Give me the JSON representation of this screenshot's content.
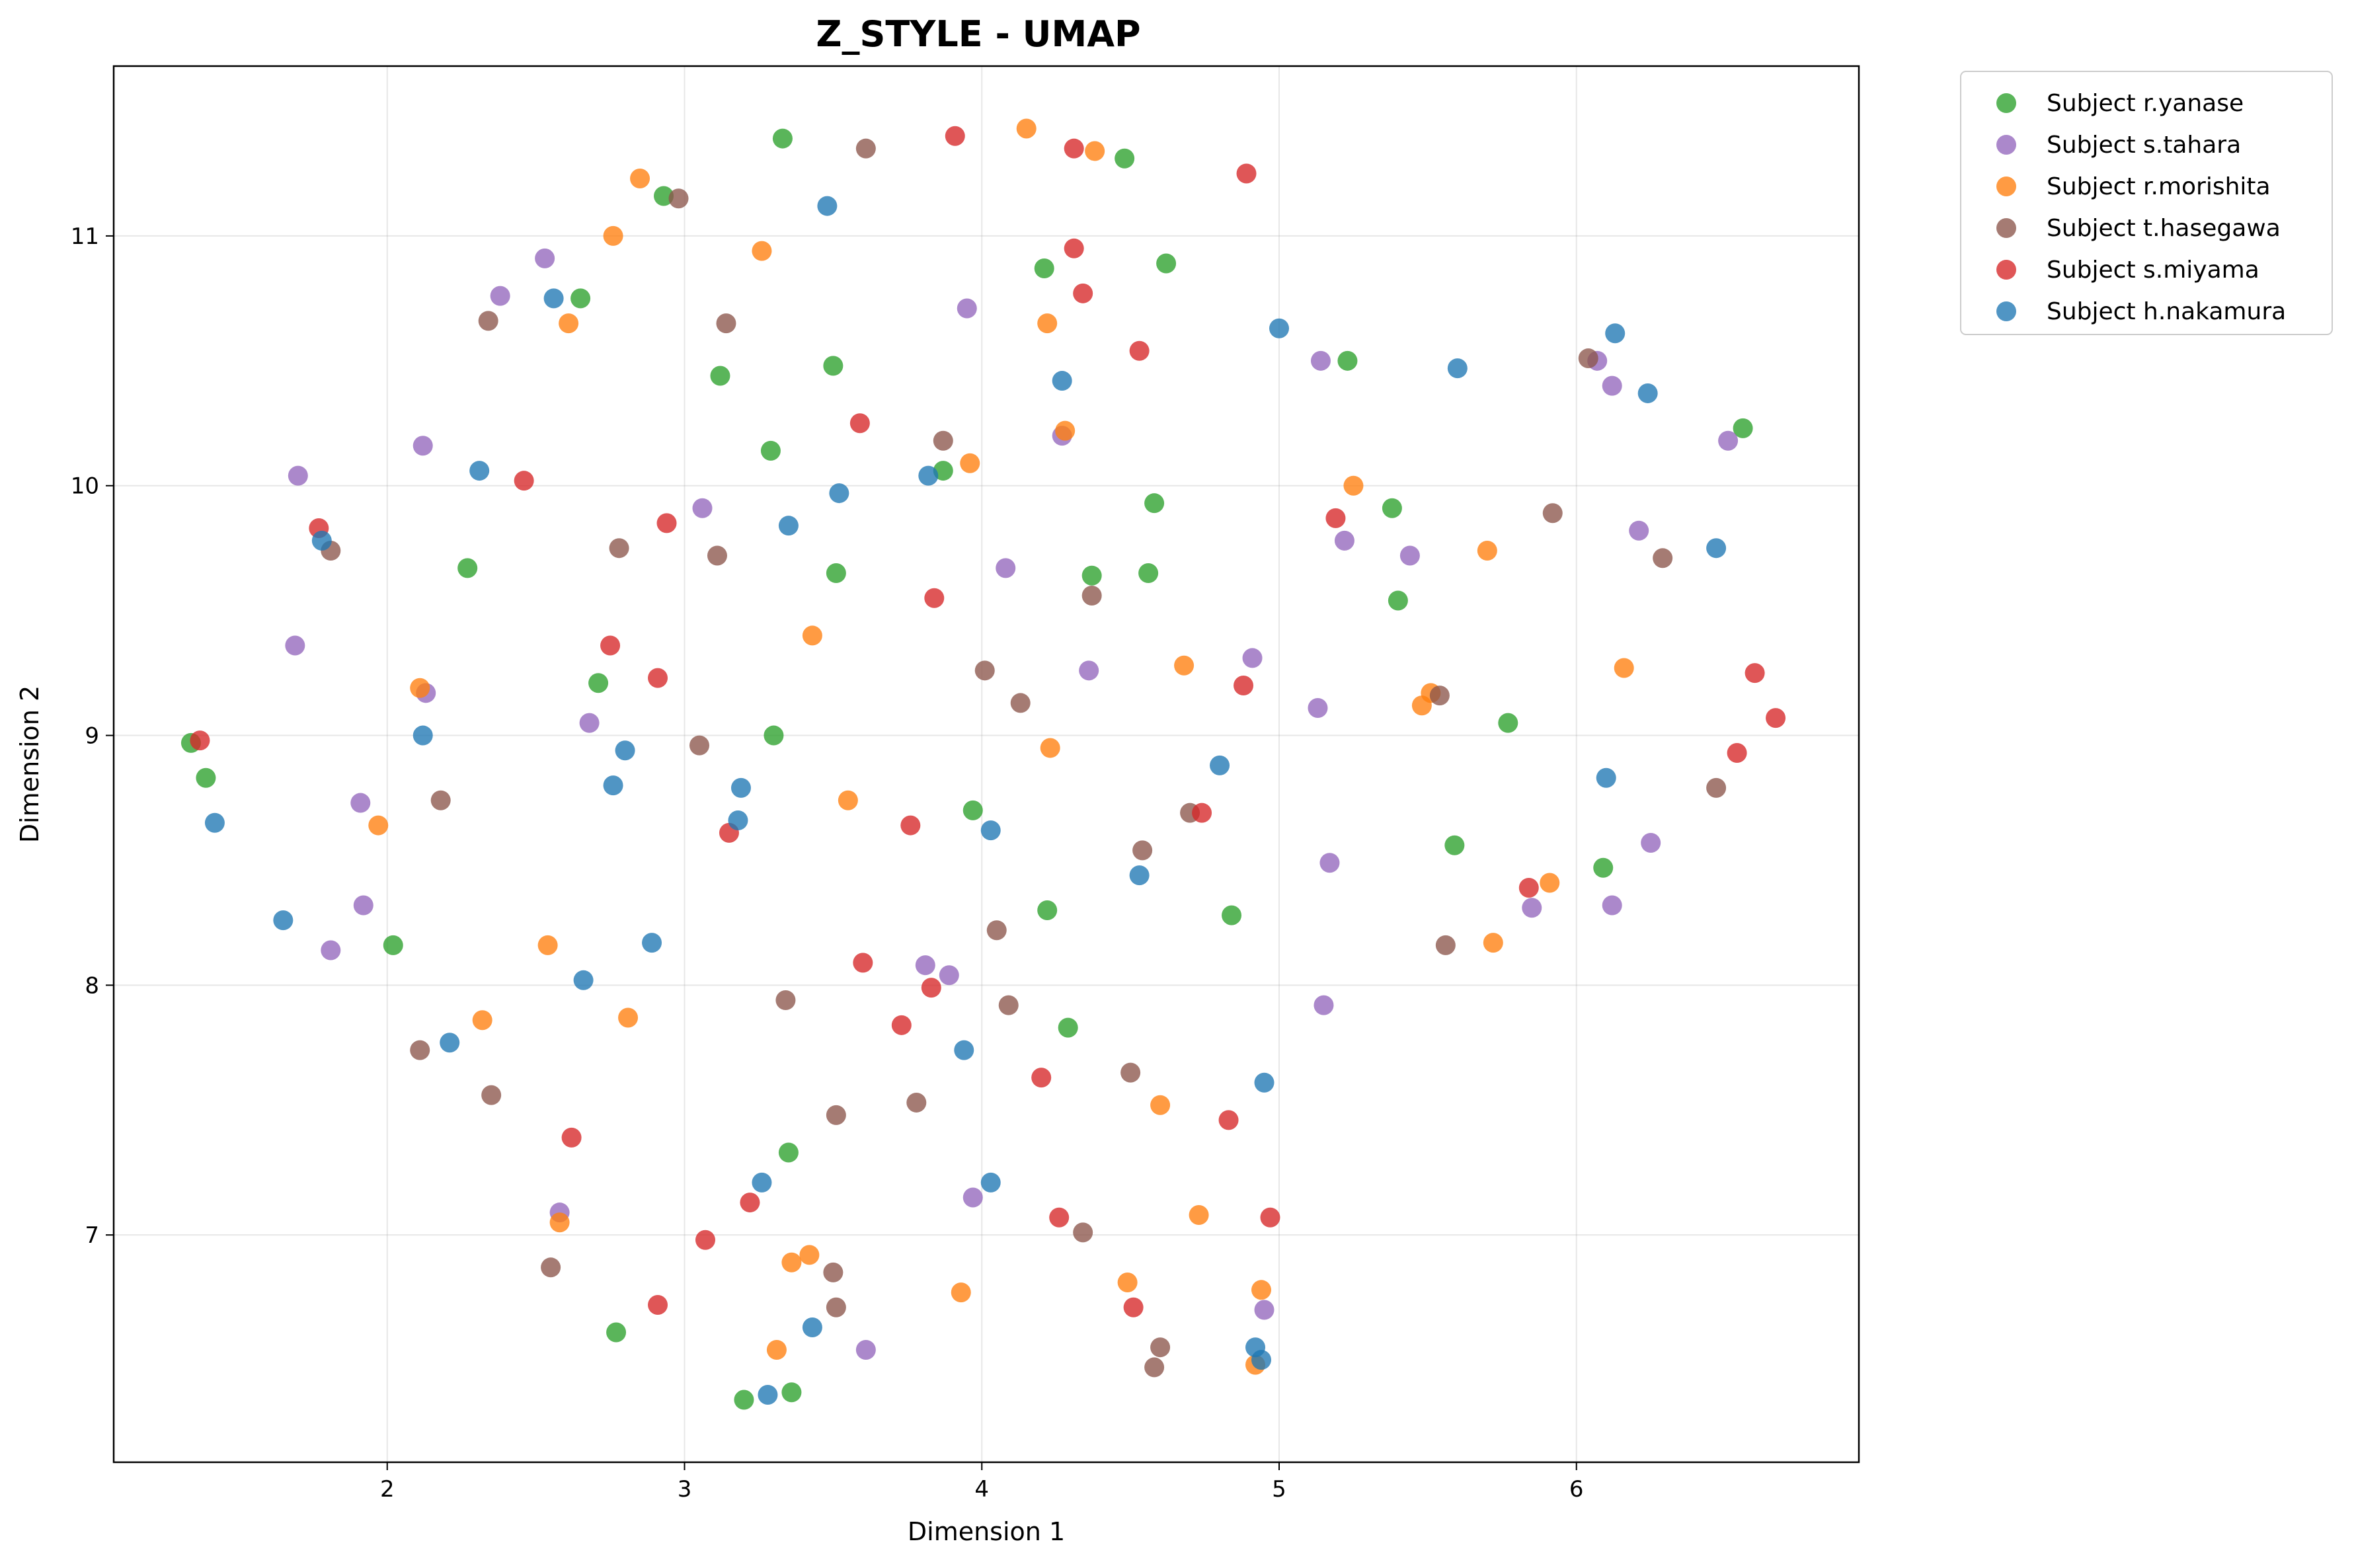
{
  "chart_data": {
    "type": "scatter",
    "title": "Z_STYLE - UMAP",
    "xlabel": "Dimension 1",
    "ylabel": "Dimension 2",
    "xlim": [
      1.08,
      6.95
    ],
    "ylim": [
      6.09,
      11.68
    ],
    "xticks": [
      2,
      3,
      4,
      5,
      6
    ],
    "yticks": [
      7,
      8,
      9,
      10,
      11
    ],
    "grid": true,
    "legend_position": "outside-top-right",
    "series": [
      {
        "name": "Subject r.yanase",
        "color": "#2ca02c",
        "x": [
          3.33,
          4.48,
          2.93,
          4.21,
          4.62,
          2.65,
          3.5,
          5.23,
          3.12,
          6.56,
          3.29,
          3.87,
          4.58,
          5.38,
          2.27,
          3.51,
          4.37,
          4.56,
          5.4,
          2.71,
          5.77,
          1.34,
          3.3,
          1.39,
          3.97,
          5.59,
          6.09,
          4.22,
          4.84,
          2.02,
          4.29,
          3.35,
          2.77,
          3.2,
          3.36
        ],
        "y": [
          11.39,
          11.31,
          11.16,
          10.87,
          10.89,
          10.75,
          10.48,
          10.5,
          10.44,
          10.23,
          10.14,
          10.06,
          9.93,
          9.91,
          9.67,
          9.65,
          9.64,
          9.65,
          9.54,
          9.21,
          9.05,
          8.97,
          9.0,
          8.83,
          8.7,
          8.56,
          8.47,
          8.3,
          8.28,
          8.16,
          7.83,
          7.33,
          6.61,
          6.34,
          6.37
        ]
      },
      {
        "name": "Subject s.tahara",
        "color": "#9467bd",
        "x": [
          2.53,
          2.38,
          3.95,
          5.14,
          6.07,
          6.12,
          6.51,
          2.12,
          4.27,
          1.7,
          3.06,
          5.22,
          6.21,
          4.08,
          5.44,
          1.69,
          4.91,
          4.36,
          2.13,
          5.13,
          2.68,
          1.91,
          6.25,
          5.17,
          6.12,
          1.92,
          5.85,
          1.81,
          3.81,
          3.89,
          5.15,
          2.58,
          3.97,
          4.95,
          3.61
        ],
        "y": [
          10.91,
          10.76,
          10.71,
          10.5,
          10.5,
          10.4,
          10.18,
          10.16,
          10.2,
          10.04,
          9.91,
          9.78,
          9.82,
          9.67,
          9.72,
          9.36,
          9.31,
          9.26,
          9.17,
          9.11,
          9.05,
          8.73,
          8.57,
          8.49,
          8.32,
          8.32,
          8.31,
          8.14,
          8.08,
          8.04,
          7.92,
          7.09,
          7.15,
          6.7,
          6.54
        ]
      },
      {
        "name": "Subject r.morishita",
        "color": "#ff7f0e",
        "x": [
          4.15,
          4.38,
          2.85,
          2.76,
          3.26,
          2.61,
          4.22,
          4.28,
          3.96,
          5.25,
          5.7,
          3.43,
          4.68,
          6.16,
          2.11,
          5.51,
          5.48,
          4.23,
          3.55,
          1.97,
          5.91,
          2.54,
          5.72,
          2.32,
          2.81,
          4.6,
          4.73,
          2.58,
          3.42,
          3.36,
          3.93,
          4.49,
          4.94,
          3.31,
          4.92
        ],
        "y": [
          11.43,
          11.34,
          11.23,
          11.0,
          10.94,
          10.65,
          10.65,
          10.22,
          10.09,
          10.0,
          9.74,
          9.4,
          9.28,
          9.27,
          9.19,
          9.17,
          9.12,
          8.95,
          8.74,
          8.64,
          8.41,
          8.16,
          8.17,
          7.86,
          7.87,
          7.52,
          7.08,
          7.05,
          6.92,
          6.89,
          6.77,
          6.81,
          6.78,
          6.54,
          6.48
        ]
      },
      {
        "name": "Subject t.hasegawa",
        "color": "#8c564b",
        "x": [
          3.61,
          2.98,
          2.34,
          3.14,
          6.04,
          3.87,
          5.92,
          1.81,
          2.78,
          3.11,
          6.29,
          4.37,
          4.01,
          4.13,
          5.54,
          3.05,
          6.47,
          2.18,
          4.7,
          4.54,
          4.05,
          5.56,
          3.34,
          4.09,
          2.11,
          4.5,
          2.35,
          3.78,
          3.51,
          4.34,
          2.55,
          3.5,
          3.51,
          4.6,
          4.58
        ],
        "y": [
          11.35,
          11.15,
          10.66,
          10.65,
          10.51,
          10.18,
          9.89,
          9.74,
          9.75,
          9.72,
          9.71,
          9.56,
          9.26,
          9.13,
          9.16,
          8.96,
          8.79,
          8.74,
          8.69,
          8.54,
          8.22,
          8.16,
          7.94,
          7.92,
          7.74,
          7.65,
          7.56,
          7.53,
          7.48,
          7.01,
          6.87,
          6.85,
          6.71,
          6.55,
          6.47
        ]
      },
      {
        "name": "Subject s.miyama",
        "color": "#d62728",
        "x": [
          3.91,
          4.31,
          4.89,
          4.31,
          4.34,
          4.53,
          3.59,
          2.46,
          1.77,
          2.94,
          5.19,
          3.84,
          2.75,
          2.91,
          6.6,
          4.88,
          1.37,
          6.54,
          6.67,
          4.74,
          3.76,
          3.15,
          5.84,
          3.6,
          3.83,
          3.73,
          4.2,
          4.83,
          2.62,
          3.22,
          3.07,
          4.26,
          4.97,
          4.51,
          2.91
        ],
        "y": [
          11.4,
          11.35,
          11.25,
          10.95,
          10.77,
          10.54,
          10.25,
          10.02,
          9.83,
          9.85,
          9.87,
          9.55,
          9.36,
          9.23,
          9.25,
          9.2,
          8.98,
          8.93,
          9.07,
          8.69,
          8.64,
          8.61,
          8.39,
          8.09,
          7.99,
          7.84,
          7.63,
          7.46,
          7.39,
          7.13,
          6.98,
          7.07,
          7.07,
          6.71,
          6.72
        ]
      },
      {
        "name": "Subject h.nakamura",
        "color": "#1f77b4",
        "x": [
          3.48,
          2.56,
          5.0,
          6.13,
          5.6,
          4.27,
          6.24,
          2.31,
          3.82,
          3.52,
          3.35,
          1.78,
          6.47,
          2.12,
          2.8,
          4.8,
          2.76,
          6.1,
          3.19,
          1.42,
          3.18,
          4.03,
          4.53,
          1.65,
          2.89,
          2.66,
          2.21,
          3.94,
          4.95,
          4.03,
          3.26,
          3.43,
          4.92,
          4.94,
          3.28
        ],
        "y": [
          11.12,
          10.75,
          10.63,
          10.61,
          10.47,
          10.42,
          10.37,
          10.06,
          10.04,
          9.97,
          9.84,
          9.78,
          9.75,
          9.0,
          8.94,
          8.88,
          8.8,
          8.83,
          8.79,
          8.65,
          8.66,
          8.62,
          8.44,
          8.26,
          8.17,
          8.02,
          7.77,
          7.74,
          7.61,
          7.21,
          7.21,
          6.63,
          6.55,
          6.5,
          6.36
        ]
      }
    ]
  }
}
